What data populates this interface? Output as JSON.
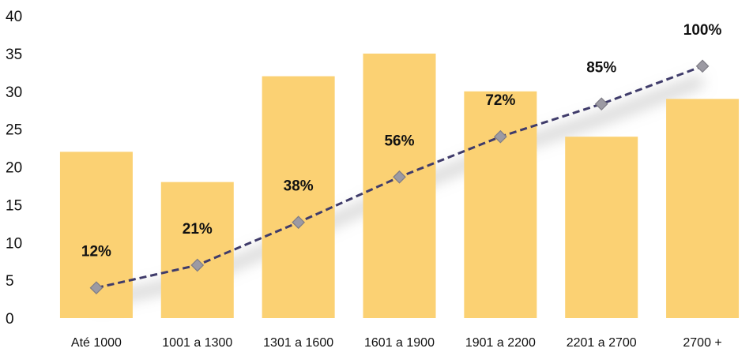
{
  "chart_data": {
    "type": "bar",
    "categories": [
      "Até 1000",
      "1001 a 1300",
      "1301 a 1600",
      "1601 a 1900",
      "1901 a 2200",
      "2201 a 2700",
      "2700 +"
    ],
    "series": [
      {
        "type": "bar",
        "values": [
          22,
          18,
          32,
          35,
          30,
          24,
          29
        ]
      },
      {
        "type": "line",
        "values": [
          12,
          21,
          38,
          56,
          72,
          85,
          100
        ],
        "labels": [
          "12%",
          "21%",
          "38%",
          "56%",
          "72%",
          "85%",
          "100%"
        ],
        "axis": "secondary",
        "ylim": [
          0,
          120
        ]
      }
    ],
    "title": "",
    "xlabel": "",
    "ylabel": "",
    "ylim": [
      0,
      40
    ],
    "yticks": [
      "0",
      "5",
      "10",
      "15",
      "20",
      "25",
      "30",
      "35",
      "40"
    ],
    "grid": false,
    "legend": "none",
    "colors": {
      "bar": "#FBD173",
      "line": "#3F3B6A",
      "marker": "#9C9AA3",
      "marker_edge": "#7F7D86"
    }
  }
}
